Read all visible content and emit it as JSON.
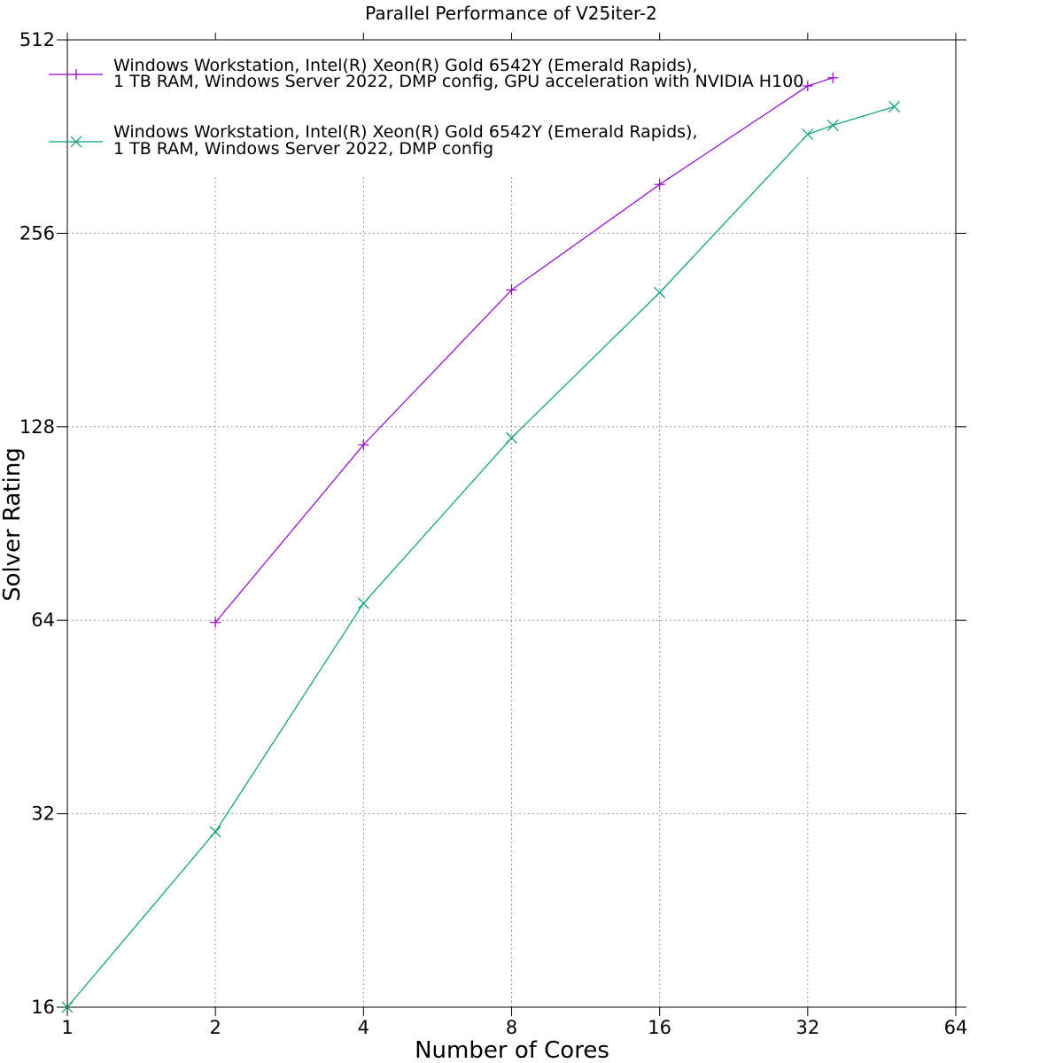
{
  "chart_data": {
    "type": "line",
    "title": "Parallel Performance of V25iter-2",
    "xlabel": "Number of Cores",
    "ylabel": "Solver Rating",
    "xscale": "log2",
    "yscale": "log2",
    "xlim": [
      1,
      64
    ],
    "ylim": [
      16,
      512
    ],
    "xticks": [
      1,
      2,
      4,
      8,
      16,
      32,
      64
    ],
    "yticks": [
      16,
      32,
      64,
      128,
      256,
      512
    ],
    "grid": true,
    "legend_position": "top-left",
    "series": [
      {
        "name_lines": [
          "Windows Workstation, Intel(R) Xeon(R) Gold 6542Y (Emerald Rapids),",
          "1 TB RAM, Windows Server 2022, DMP config, GPU acceleration with NVIDIA H100"
        ],
        "color": "#9400d3",
        "marker": "plus",
        "x": [
          2,
          4,
          8,
          16,
          32,
          36
        ],
        "y": [
          63.5,
          120,
          209,
          305,
          434,
          447
        ]
      },
      {
        "name_lines": [
          "Windows Workstation, Intel(R) Xeon(R) Gold 6542Y (Emerald Rapids),",
          "1 TB RAM, Windows Server 2022, DMP config"
        ],
        "color": "#009e73",
        "marker": "cross",
        "x": [
          1,
          2,
          4,
          8,
          16,
          32,
          36,
          48
        ],
        "y": [
          16,
          30,
          68,
          123,
          207,
          365,
          377,
          403
        ]
      }
    ]
  }
}
